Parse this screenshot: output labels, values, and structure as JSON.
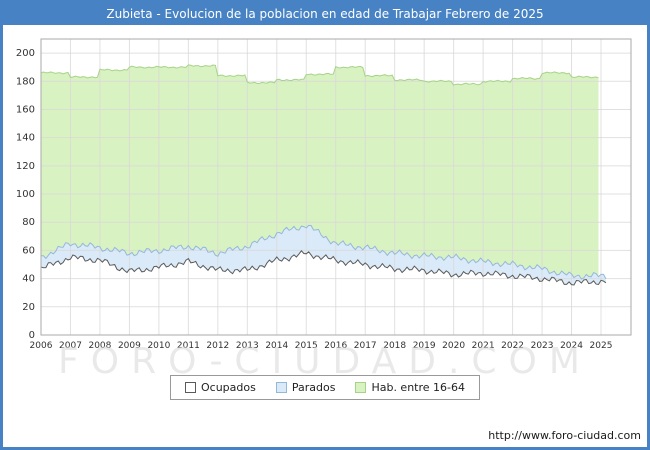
{
  "window": {
    "title": "Zubieta - Evolucion de la poblacion en edad de Trabajar Febrero de 2025"
  },
  "watermark": "FORO-CIUDAD.COM",
  "footer": {
    "url": "http://www.foro-ciudad.com"
  },
  "colors": {
    "frame_blue": "#4682c4",
    "grid": "#d9d9d9",
    "axis": "#aaaaaa"
  },
  "legend": [
    {
      "label": "Ocupados",
      "fill": "#ffffff",
      "stroke": "#5a5a5a"
    },
    {
      "label": "Parados",
      "fill": "#daeaf8",
      "stroke": "#94b8da"
    },
    {
      "label": "Hab. entre 16-64",
      "fill": "#d9f2c2",
      "stroke": "#a6d387"
    }
  ],
  "chart_data": {
    "type": "area",
    "title": "Zubieta - Evolucion de la poblacion en edad de Trabajar Febrero de 2025",
    "xlabel": "",
    "ylabel": "",
    "ylim": [
      0,
      210
    ],
    "y_ticks": [
      0,
      20,
      40,
      60,
      80,
      100,
      120,
      140,
      160,
      180,
      200
    ],
    "x_ticks": [
      2006,
      2007,
      2008,
      2009,
      2010,
      2011,
      2012,
      2013,
      2014,
      2015,
      2016,
      2017,
      2018,
      2019,
      2020,
      2021,
      2022,
      2023,
      2024,
      2025
    ],
    "x_start": 2006,
    "legend_position": "bottom",
    "grid": true,
    "series": [
      {
        "name": "Hab. entre 16-64",
        "interp": "step",
        "x_end": 2024.92,
        "noise": 0.6,
        "fill": "#d9f2c2",
        "stroke": "#a6d387",
        "yearly": [
          186,
          183,
          188,
          190,
          190,
          191,
          184,
          179,
          181,
          185,
          190,
          184,
          181,
          180,
          178,
          180,
          182,
          186,
          183
        ]
      },
      {
        "name": "Parados",
        "interp": "linear",
        "base": "Ocupados",
        "x_end": 2025.17,
        "noise": 2.2,
        "fill": "#daeaf8",
        "stroke": "#94b8da",
        "yearly": [
          8,
          10,
          9,
          13,
          12,
          11,
          12,
          17,
          19,
          20,
          12,
          12,
          11,
          10,
          12,
          8,
          8,
          7,
          5,
          4
        ]
      },
      {
        "name": "Ocupados",
        "interp": "linear",
        "x_end": 2025.17,
        "noise": 2.2,
        "fill": "#ffffff",
        "stroke": "#5a5a5a",
        "yearly": [
          47,
          55,
          53,
          45,
          48,
          52,
          46,
          46,
          53,
          58,
          53,
          50,
          47,
          46,
          43,
          44,
          42,
          40,
          37,
          38
        ]
      }
    ]
  }
}
